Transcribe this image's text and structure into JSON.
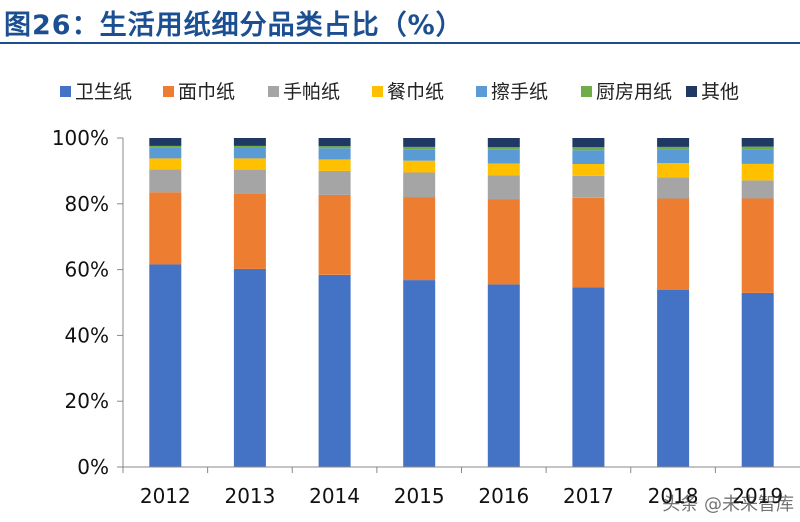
{
  "header": {
    "title": "图26：生活用纸细分品类占比（%）"
  },
  "chart_data": {
    "type": "bar",
    "stacked": true,
    "categories": [
      "2012",
      "2013",
      "2014",
      "2015",
      "2016",
      "2017",
      "2018",
      "2019"
    ],
    "ylim": [
      0,
      100
    ],
    "yticks": [
      "0%",
      "20%",
      "40%",
      "60%",
      "80%",
      "100%"
    ],
    "legend_position": "top",
    "grid": false,
    "series": [
      {
        "name": "卫生纸",
        "color": "#4472c4",
        "values": [
          61.6,
          60.2,
          58.4,
          56.8,
          55.5,
          54.6,
          53.8,
          52.9
        ]
      },
      {
        "name": "面巾纸",
        "color": "#ed7d31",
        "values": [
          21.9,
          22.9,
          24.3,
          25.1,
          25.8,
          27.2,
          27.8,
          28.7
        ]
      },
      {
        "name": "手帕纸",
        "color": "#a5a5a5",
        "values": [
          7.0,
          7.3,
          7.3,
          7.6,
          7.4,
          6.7,
          6.5,
          5.5
        ]
      },
      {
        "name": "餐巾纸",
        "color": "#ffc000",
        "values": [
          3.3,
          3.4,
          3.5,
          3.6,
          3.5,
          3.6,
          4.3,
          5.0
        ]
      },
      {
        "name": "擦手纸",
        "color": "#5b9bd5",
        "values": [
          3.4,
          3.3,
          3.4,
          3.5,
          4.2,
          4.2,
          4.0,
          4.3
        ]
      },
      {
        "name": "厨房用纸",
        "color": "#70ad47",
        "values": [
          0.4,
          0.5,
          0.6,
          0.7,
          0.8,
          0.9,
          0.9,
          1.0
        ]
      },
      {
        "name": "其他",
        "color": "#1f3864",
        "values": [
          2.4,
          2.4,
          2.5,
          2.7,
          2.8,
          2.8,
          2.7,
          2.6
        ]
      }
    ]
  },
  "watermark": {
    "text": "头条 @未来智库"
  }
}
